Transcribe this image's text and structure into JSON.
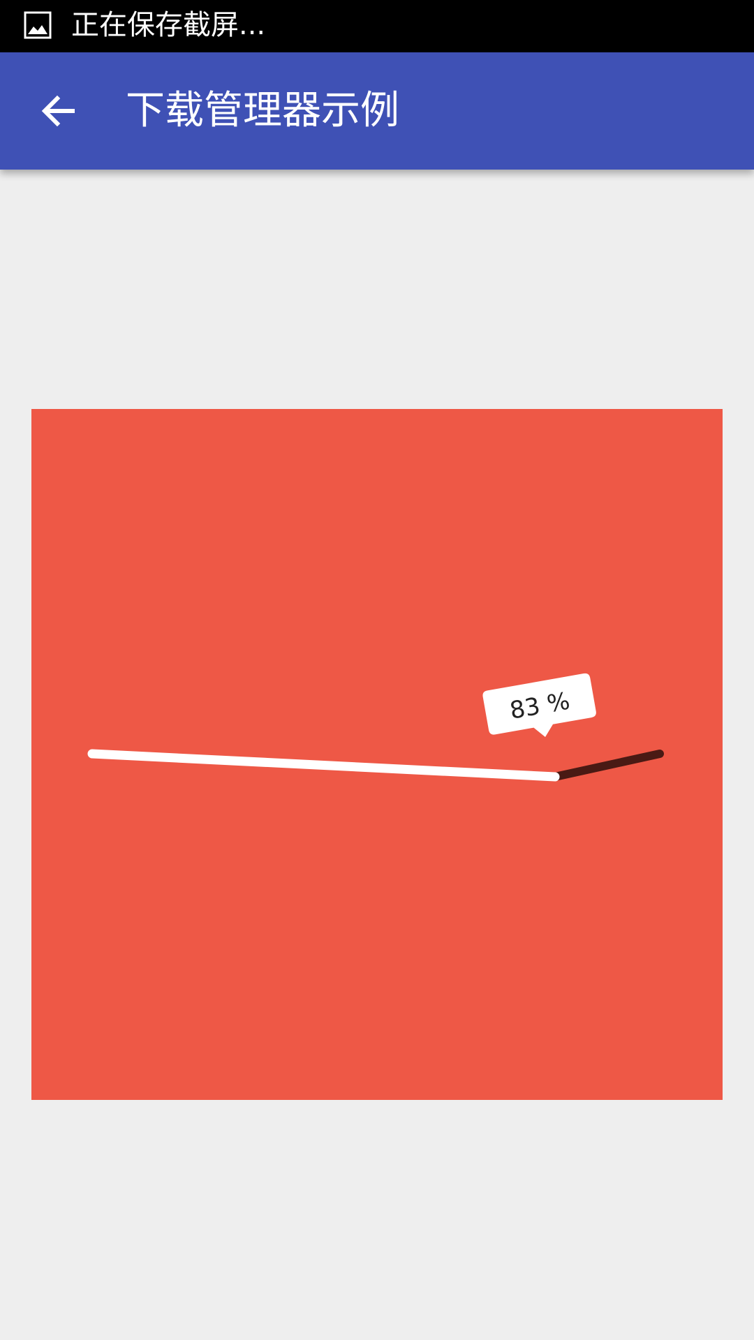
{
  "status_bar": {
    "notification_icon": "image-icon",
    "text": "正在保存截屏..."
  },
  "app_bar": {
    "back_icon": "arrow-left-icon",
    "title": "下载管理器示例"
  },
  "download": {
    "progress": 83,
    "percent_label": "83 %",
    "panel_color": "#ee5846",
    "done_color": "#ffffff",
    "remaining_color": "#4a1a14"
  }
}
